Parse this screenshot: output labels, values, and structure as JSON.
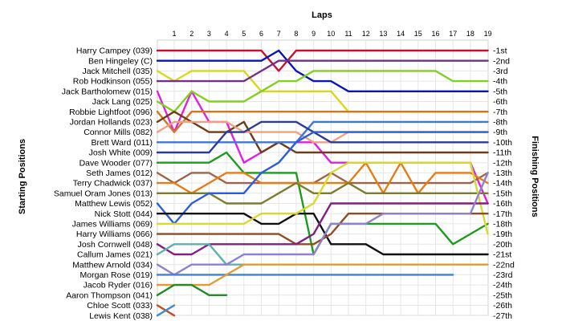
{
  "chart_data": {
    "type": "line",
    "title": "",
    "xlabel": "Laps",
    "left_label": "Starting Positions",
    "right_label": "Finishing Positions",
    "laps": [
      1,
      2,
      3,
      4,
      5,
      6,
      7,
      8,
      9,
      10,
      11,
      12,
      13,
      14,
      15,
      16,
      17,
      18,
      19
    ],
    "ylim": [
      1,
      27
    ],
    "grid": true,
    "starting_grid": [
      "Harry Campey (039)",
      "Ben Hingeley (C)",
      "Jack Mitchell (035)",
      "Rob Hodkinson (055)",
      "Jack Bartholomew (015)",
      "Jack Lang (025)",
      "Robbie Lightfoot (096)",
      "Jordan Hollands (023)",
      "Connor Mills (082)",
      "Brett Ward (011)",
      "Josh White (009)",
      "Dave Wooder (077)",
      "Seth James (012)",
      "Terry Chadwick (037)",
      "Samuel Oram Jones (013)",
      "Matthew Lewis (052)",
      "Nick Stott (044)",
      "James Williams (069)",
      "Harry Williams (066)",
      "Josh Cornwell (048)",
      "Callum James (021)",
      "Matthew Arnold (034)",
      "Morgan Rose (019)",
      "Jacob Ryder (016)",
      "Aaron Thompson (041)",
      "Chloe Scott (033)",
      "Lewis Kent (038)"
    ],
    "finishing_labels": [
      "1st",
      "2nd",
      "3rd",
      "4th",
      "5th",
      "6th",
      "7th",
      "8th",
      "9th",
      "10th",
      "11th",
      "12th",
      "13th",
      "14th",
      "15th",
      "16th",
      "17th",
      "18th",
      "19th",
      "20th",
      "21st",
      "22nd",
      "23rd",
      "24th",
      "25th",
      "26th",
      "27th"
    ],
    "series": [
      {
        "color": "#c8102e",
        "positions": [
          1,
          1,
          1,
          1,
          1,
          1,
          1,
          3,
          1,
          1,
          1,
          1,
          1,
          1,
          1,
          1,
          1,
          1,
          1,
          1
        ]
      },
      {
        "color": "#0a16b4",
        "positions": [
          2,
          2,
          2,
          2,
          2,
          2,
          2,
          1,
          3,
          4,
          4,
          5,
          5,
          5,
          5,
          5,
          5,
          5,
          5,
          5
        ]
      },
      {
        "color": "#d8d818",
        "positions": [
          3,
          4,
          3,
          3,
          3,
          3,
          5,
          5,
          5,
          5,
          5,
          7,
          7,
          7,
          7,
          7,
          7,
          7,
          7,
          7
        ]
      },
      {
        "color": "#70308c",
        "positions": [
          4,
          4,
          4,
          4,
          4,
          4,
          3,
          2,
          2,
          2,
          2,
          2,
          2,
          2,
          2,
          2,
          2,
          2,
          2,
          2
        ]
      },
      {
        "color": "#e020e0",
        "positions": [
          5,
          9,
          5,
          8,
          8,
          12,
          11,
          10,
          10,
          10,
          12,
          12,
          12,
          12,
          12,
          12,
          12,
          12,
          12,
          16
        ]
      },
      {
        "color": "#80d020",
        "positions": [
          6,
          7,
          5,
          6,
          6,
          6,
          5,
          4,
          4,
          3,
          3,
          3,
          3,
          3,
          3,
          3,
          3,
          4,
          4,
          4
        ]
      },
      {
        "color": "#d07820",
        "positions": [
          7,
          9,
          7,
          7,
          7,
          7,
          7,
          7,
          7,
          7,
          7,
          7,
          7,
          7,
          7,
          7,
          7,
          7,
          7,
          7
        ]
      },
      {
        "color": "#703c18",
        "positions": [
          8,
          7,
          8,
          9,
          9,
          8,
          11,
          10,
          11,
          11,
          11,
          11,
          11,
          11,
          11,
          11,
          11,
          11,
          11,
          11
        ]
      },
      {
        "color": "#f0a080",
        "positions": [
          9,
          8,
          8,
          8,
          8,
          9,
          9,
          9,
          9,
          10,
          10,
          9,
          9,
          9,
          9,
          9,
          9,
          9,
          9,
          9
        ]
      },
      {
        "color": "#3c78d8",
        "positions": [
          10,
          10,
          10,
          10,
          10,
          10,
          10,
          10,
          10,
          8,
          8,
          8,
          8,
          8,
          8,
          8,
          8,
          8,
          8,
          8
        ]
      },
      {
        "color": "#283c98",
        "positions": [
          11,
          11,
          11,
          11,
          9,
          9,
          8,
          8,
          8,
          9,
          10,
          10,
          10,
          10,
          10,
          10,
          10,
          10,
          10,
          10
        ]
      },
      {
        "color": "#1c9c1c",
        "positions": [
          12,
          12,
          12,
          12,
          11,
          13,
          13,
          13,
          13,
          21,
          18,
          18,
          18,
          18,
          18,
          18,
          18,
          20,
          19,
          18
        ]
      },
      {
        "color": "#9c6448",
        "positions": [
          13,
          14,
          13,
          13,
          14,
          14,
          14,
          14,
          14,
          14,
          13,
          14,
          14,
          14,
          14,
          14,
          14,
          14,
          14,
          13
        ]
      },
      {
        "color": "#e87c14",
        "positions": [
          14,
          14,
          15,
          14,
          13,
          13,
          14,
          14,
          14,
          14,
          14,
          14,
          12,
          15,
          12,
          15,
          13,
          13,
          13,
          14
        ]
      },
      {
        "color": "#7c7c30",
        "positions": [
          15,
          15,
          15,
          15,
          16,
          16,
          16,
          15,
          14,
          15,
          15,
          14,
          15,
          15,
          15,
          15,
          15,
          15,
          15,
          15
        ]
      },
      {
        "color": "#2c5ce0",
        "positions": [
          16,
          18,
          16,
          15,
          15,
          15,
          13,
          12,
          10,
          9,
          9,
          9,
          9,
          9,
          9,
          9,
          9,
          9,
          9,
          9
        ]
      },
      {
        "color": "#101010",
        "positions": [
          17,
          17,
          17,
          17,
          17,
          17,
          18,
          18,
          17,
          17,
          20,
          20,
          20,
          21,
          21,
          21,
          21,
          21,
          21,
          21
        ]
      },
      {
        "color": "#d8d830",
        "positions": [
          18,
          18,
          18,
          18,
          18,
          18,
          17,
          17,
          17,
          16,
          13,
          12,
          12,
          12,
          12,
          12,
          12,
          12,
          12,
          19
        ]
      },
      {
        "color": "#904c24",
        "positions": [
          19,
          19,
          19,
          19,
          19,
          19,
          19,
          19,
          20,
          20,
          19,
          17,
          17,
          17,
          17,
          17,
          17,
          17,
          17,
          17
        ]
      },
      {
        "color": "#802080",
        "positions": [
          20,
          21,
          21,
          20,
          20,
          20,
          20,
          20,
          20,
          19,
          16,
          16,
          16,
          16,
          16,
          16,
          16,
          16,
          16,
          16
        ]
      },
      {
        "color": "#60b0b0",
        "positions": [
          21,
          20,
          20,
          20,
          22,
          22
        ]
      },
      {
        "color": "#9080d0",
        "positions": [
          22,
          23,
          22,
          22,
          22,
          21,
          21,
          21,
          21,
          21,
          18,
          18,
          18,
          17,
          17,
          17,
          17,
          17,
          17,
          13
        ]
      },
      {
        "color": "#4080d8",
        "positions": [
          23,
          23,
          23,
          23,
          23,
          23,
          23,
          23,
          23,
          23,
          23,
          23,
          23,
          23,
          23,
          23,
          23,
          23
        ]
      },
      {
        "color": "#e09c30",
        "positions": [
          24,
          24,
          24,
          24,
          23,
          22,
          22,
          22,
          22,
          22,
          22,
          22,
          22,
          22,
          22,
          22,
          22,
          22,
          22,
          22
        ]
      },
      {
        "color": "#208c28",
        "positions": [
          25,
          24,
          24,
          25,
          25
        ]
      },
      {
        "color": "#c05020",
        "positions": [
          26,
          27
        ]
      },
      {
        "color": "#3c8cd0",
        "positions": [
          27,
          26
        ]
      }
    ]
  }
}
